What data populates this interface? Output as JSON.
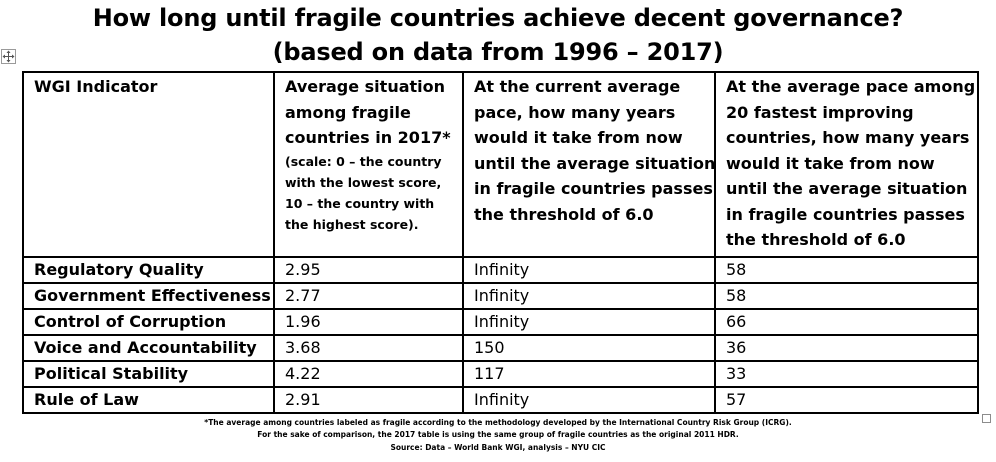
{
  "title_line1": "How long until fragile countries achieve decent governance?",
  "title_line2": "(based on data from 1996 – 2017)",
  "icons": {
    "move": "move-arrows-icon",
    "resize": "resize-handle-icon"
  },
  "table": {
    "headers": [
      [
        "WGI Indicator"
      ],
      [
        "Average situation",
        "among fragile",
        "countries in 2017*"
      ],
      [
        "At the current average",
        "pace, how many years",
        "would it take from now",
        "until the average situation",
        "in fragile countries passes",
        "the threshold of 6.0"
      ],
      [
        "At the average pace among",
        "20 fastest improving",
        "countries, how many years",
        "would it take from now",
        "until the average situation",
        "in fragile countries passes",
        "the threshold of 6.0"
      ]
    ],
    "scale_note": [
      "(scale: 0 – the country",
      "with the lowest score,",
      "10 – the country with",
      "the highest score)."
    ],
    "rows": [
      [
        "Regulatory Quality",
        "2.95",
        "Infinity",
        "58"
      ],
      [
        "Government Effectiveness",
        "2.77",
        "Infinity",
        "58"
      ],
      [
        "Control of Corruption",
        "1.96",
        "Infinity",
        "66"
      ],
      [
        "Voice and Accountability",
        "3.68",
        "150",
        "36"
      ],
      [
        "Political Stability",
        "4.22",
        "117",
        "33"
      ],
      [
        "Rule of Law",
        "2.91",
        "Infinity",
        "57"
      ]
    ]
  },
  "footnotes": [
    "*The average among countries labeled as fragile according to the methodology developed by the International Country Risk Group (ICRG).",
    "For the sake of comparison, the 2017 table is using the same group of fragile countries as the original 2011 HDR.",
    "Source: Data – World Bank WGI, analysis – NYU CIC"
  ]
}
